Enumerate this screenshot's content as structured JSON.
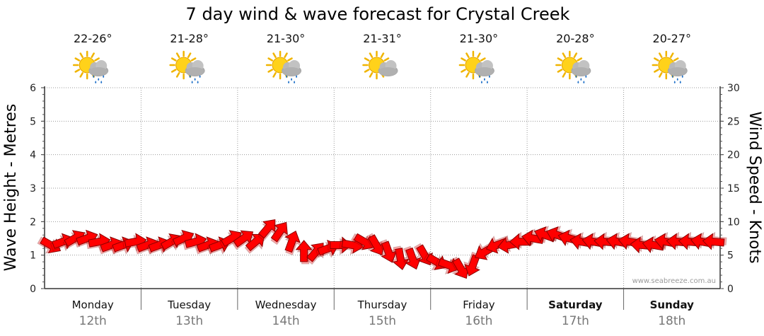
{
  "chart_data": {
    "type": "line",
    "title": "7 day wind & wave forecast for Crystal Creek",
    "ylabel_left": "Wave Height - Metres",
    "ylabel_right": "Wind Speed - Knots",
    "ylim_left": [
      0,
      6
    ],
    "ylim_right": [
      0,
      30
    ],
    "yticks_left": [
      "0",
      "1",
      "2",
      "3",
      "4",
      "5",
      "6"
    ],
    "yticks_right": [
      "0",
      "5",
      "10",
      "15",
      "20",
      "25",
      "30"
    ],
    "credit": "www.seabreeze.com.au",
    "grid": true,
    "days": [
      {
        "day": "Monday",
        "date": "12th",
        "bold": false,
        "temp": "22-26°",
        "icon": "sun-cloud-rain-icon"
      },
      {
        "day": "Tuesday",
        "date": "13th",
        "bold": false,
        "temp": "21-28°",
        "icon": "sun-cloud-rain-icon"
      },
      {
        "day": "Wednesday",
        "date": "14th",
        "bold": false,
        "temp": "21-30°",
        "icon": "sun-cloud-rain-icon"
      },
      {
        "day": "Thursday",
        "date": "15th",
        "bold": false,
        "temp": "21-31°",
        "icon": "sun-cloud-icon"
      },
      {
        "day": "Friday",
        "date": "16th",
        "bold": false,
        "temp": "21-30°",
        "icon": "sun-cloud-rain-icon"
      },
      {
        "day": "Saturday",
        "date": "17th",
        "bold": true,
        "temp": "20-28°",
        "icon": "sun-cloud-rain-icon"
      },
      {
        "day": "Sunday",
        "date": "18th",
        "bold": true,
        "temp": "20-27°",
        "icon": "sun-cloud-rain-icon"
      }
    ],
    "series": [
      {
        "name": "Wind Speed",
        "color": "#ff0000",
        "hours_per_point": 3,
        "values_knots": [
          6.5,
          7.0,
          7.5,
          7.5,
          7.0,
          6.5,
          6.5,
          7.0,
          6.5,
          6.5,
          7.0,
          7.5,
          7.0,
          6.5,
          6.5,
          7.5,
          7.5,
          7.0,
          9.0,
          8.5,
          7.0,
          5.5,
          5.5,
          6.0,
          6.5,
          6.5,
          7.0,
          6.5,
          5.5,
          4.5,
          4.5,
          5.0,
          4.0,
          3.5,
          3.0,
          3.5,
          5.5,
          6.5,
          6.5,
          7.0,
          7.5,
          8.0,
          8.0,
          7.5,
          7.0,
          7.0,
          7.0,
          7.0,
          7.0,
          6.5,
          6.5,
          7.0,
          7.0,
          7.0,
          7.0,
          7.0
        ],
        "directions_deg": [
          300,
          250,
          240,
          250,
          260,
          250,
          250,
          260,
          250,
          250,
          240,
          245,
          255,
          250,
          250,
          240,
          235,
          230,
          220,
          215,
          200,
          180,
          220,
          250,
          270,
          280,
          300,
          330,
          340,
          350,
          340,
          330,
          300,
          290,
          330,
          20,
          60,
          70,
          80,
          90,
          100,
          110,
          110,
          105,
          100,
          100,
          95,
          100,
          100,
          95,
          100,
          100,
          95,
          95,
          100,
          95
        ]
      }
    ]
  }
}
